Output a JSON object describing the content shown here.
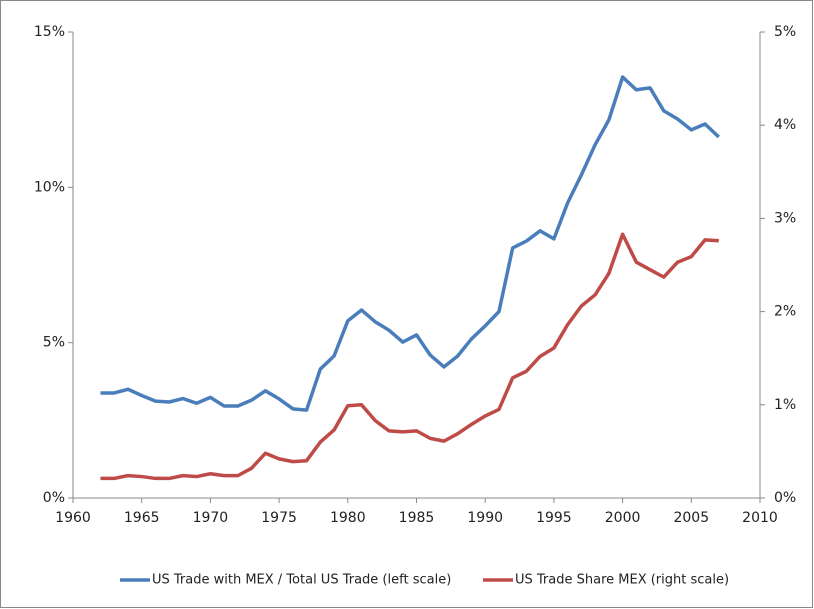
{
  "chart_data": {
    "type": "line",
    "x": [
      1962,
      1963,
      1964,
      1965,
      1966,
      1967,
      1968,
      1969,
      1970,
      1971,
      1972,
      1973,
      1974,
      1975,
      1976,
      1977,
      1978,
      1979,
      1980,
      1981,
      1982,
      1983,
      1984,
      1985,
      1986,
      1987,
      1988,
      1989,
      1990,
      1991,
      1992,
      1993,
      1994,
      1995,
      1996,
      1997,
      1998,
      1999,
      2000,
      2001,
      2002,
      2003,
      2004,
      2005,
      2006,
      2007
    ],
    "series": [
      {
        "name": "US Trade with MEX / Total US Trade (left scale)",
        "color": "#4a7ebb",
        "values": [
          3.38,
          3.38,
          3.5,
          3.3,
          3.12,
          3.09,
          3.2,
          3.05,
          3.24,
          2.96,
          2.96,
          3.15,
          3.45,
          3.19,
          2.87,
          2.83,
          4.15,
          4.57,
          5.7,
          6.05,
          5.67,
          5.4,
          5.02,
          5.25,
          4.6,
          4.22,
          4.57,
          5.12,
          5.54,
          6.0,
          8.05,
          8.27,
          8.6,
          8.34,
          9.5,
          10.4,
          11.37,
          12.17,
          13.55,
          13.14,
          13.2,
          12.46,
          12.2,
          11.85,
          12.04,
          11.62
        ]
      },
      {
        "name": "US Trade Share MEX (right scale)",
        "color": "#be4b48",
        "axis": "y2",
        "values": [
          0.21,
          0.21,
          0.24,
          0.23,
          0.21,
          0.21,
          0.24,
          0.23,
          0.26,
          0.24,
          0.24,
          0.32,
          0.48,
          0.42,
          0.39,
          0.4,
          0.6,
          0.73,
          0.99,
          1.0,
          0.83,
          0.72,
          0.71,
          0.72,
          0.64,
          0.61,
          0.69,
          0.79,
          0.88,
          0.95,
          1.29,
          1.36,
          1.52,
          1.61,
          1.86,
          2.06,
          2.18,
          2.41,
          2.83,
          2.53,
          2.45,
          2.37,
          2.53,
          2.59,
          2.77,
          2.76
        ]
      }
    ],
    "xlim": [
      1960,
      2010
    ],
    "xticks": [
      1960,
      1965,
      1970,
      1975,
      1980,
      1985,
      1990,
      1995,
      2000,
      2005,
      2010
    ],
    "ylim": [
      0,
      15
    ],
    "yticks": [
      {
        "value": 0,
        "label": "0%"
      },
      {
        "value": 5,
        "label": "5%"
      },
      {
        "value": 10,
        "label": "10%"
      },
      {
        "value": 15,
        "label": "15%"
      }
    ],
    "y2lim": [
      0,
      5
    ],
    "y2ticks": [
      {
        "value": 0,
        "label": "0%"
      },
      {
        "value": 1,
        "label": "1%"
      },
      {
        "value": 2,
        "label": "2%"
      },
      {
        "value": 3,
        "label": "3%"
      },
      {
        "value": 4,
        "label": "4%"
      },
      {
        "value": 5,
        "label": "5%"
      }
    ],
    "legend": "bottom"
  }
}
